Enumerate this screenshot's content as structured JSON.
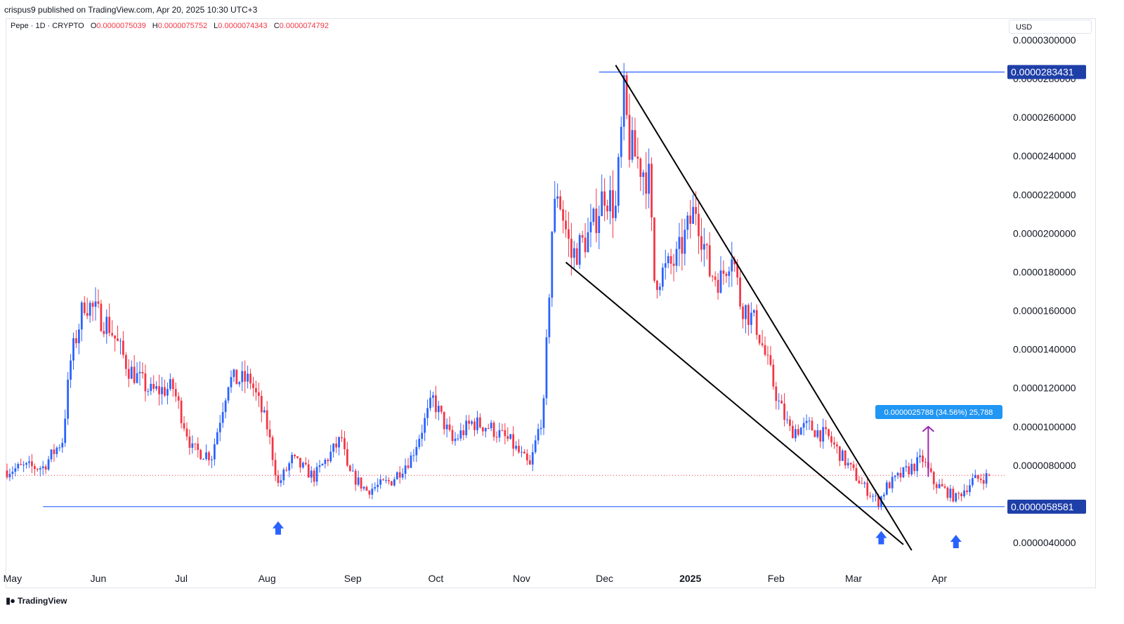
{
  "header": {
    "published_by": "crispus9 published on TradingView.com, Apr 20, 2025 10:30 UTC+3"
  },
  "legend": {
    "symbol": "Pepe · 1D · CRYPTO",
    "o_label": "O",
    "o_value": "0.0000075039",
    "h_label": "H",
    "h_value": "0.0000075752",
    "l_label": "L",
    "l_value": "0.0000074343",
    "c_label": "C",
    "c_value": "0.0000074792"
  },
  "currency": "USD",
  "footer": {
    "logo_text": "TradingView"
  },
  "colors": {
    "up": "#2962ff",
    "down": "#f23645",
    "hline": "#2962ff",
    "badge_bg": "#1e3fa8",
    "measure_bg": "#2196f3",
    "measure_arrow": "#9c27b0",
    "trendline": "#000000"
  },
  "chart_data": {
    "type": "candlestick",
    "x_labels": [
      "May",
      "Jun",
      "Jul",
      "Aug",
      "Sep",
      "Oct",
      "Nov",
      "Dec",
      "2025",
      "Feb",
      "Mar",
      "Apr"
    ],
    "x_range": [
      "2024-04-28",
      "2025-04-20"
    ],
    "y_range": [
      3.3e-06,
      3.1e-06
    ],
    "y_ticks": [
      "0.0000300000",
      "0.0000280000",
      "0.0000260000",
      "0.0000240000",
      "0.0000220000",
      "0.0000200000",
      "0.0000180000",
      "0.0000160000",
      "0.0000140000",
      "0.0000120000",
      "0.0000100000",
      "0.0000080000",
      "0.0000060000",
      "0.0000040000"
    ],
    "y_tick_values": [
      3e-05,
      2.8e-05,
      2.6e-05,
      2.4e-05,
      2.2e-05,
      2e-05,
      1.8e-05,
      1.6e-05,
      1.4e-05,
      1.2e-05,
      1e-05,
      8e-06,
      6e-06,
      4e-06
    ],
    "price_levels": [
      {
        "label": "0.0000283431",
        "value": 2.83431e-05,
        "start": "2024-11-29"
      },
      {
        "label": "0.0000058581",
        "value": 5.8581e-06,
        "start": "2024-05-12"
      }
    ],
    "current_price": 7.4792e-06,
    "trendlines": [
      {
        "from": [
          "2024-12-05",
          2.87e-05
        ],
        "to": [
          "2025-03-22",
          3.6e-06
        ]
      },
      {
        "from": [
          "2024-11-17",
          1.85e-05
        ],
        "to": [
          "2025-03-19",
          3.9e-06
        ]
      }
    ],
    "measure": {
      "label": "0.0000025788 (34.56%) 25,788",
      "date": "2025-03-28",
      "from": 7.4e-06,
      "to": 1e-05
    },
    "arrows": [
      {
        "date": "2024-08-05",
        "value": 4.7e-06
      },
      {
        "date": "2025-03-11",
        "value": 4.2e-06
      },
      {
        "date": "2025-04-07",
        "value": 4e-06
      }
    ],
    "anchors": [
      [
        "2024-04-28",
        7.7e-06
      ],
      [
        "2024-05-05",
        7.9e-06
      ],
      [
        "2024-05-12",
        7.9e-06
      ],
      [
        "2024-05-19",
        9.3e-06
      ],
      [
        "2024-05-22",
        1.34e-05
      ],
      [
        "2024-05-27",
        1.65e-05
      ],
      [
        "2024-06-05",
        1.52e-05
      ],
      [
        "2024-06-12",
        1.3e-05
      ],
      [
        "2024-06-20",
        1.18e-05
      ],
      [
        "2024-06-28",
        1.2e-05
      ],
      [
        "2024-07-05",
        8.8e-06
      ],
      [
        "2024-07-12",
        8.5e-06
      ],
      [
        "2024-07-18",
        1.24e-05
      ],
      [
        "2024-07-26",
        1.24e-05
      ],
      [
        "2024-08-01",
        1e-05
      ],
      [
        "2024-08-05",
        7e-06
      ],
      [
        "2024-08-10",
        8.3e-06
      ],
      [
        "2024-08-18",
        7.4e-06
      ],
      [
        "2024-08-28",
        9.4e-06
      ],
      [
        "2024-08-30",
        7.7e-06
      ],
      [
        "2024-09-06",
        6.7e-06
      ],
      [
        "2024-09-15",
        7.2e-06
      ],
      [
        "2024-09-22",
        8.4e-06
      ],
      [
        "2024-09-30",
        1.14e-05
      ],
      [
        "2024-10-07",
        9.2e-06
      ],
      [
        "2024-10-14",
        1.02e-05
      ],
      [
        "2024-10-20",
        1e-05
      ],
      [
        "2024-10-28",
        9.2e-06
      ],
      [
        "2024-11-04",
        7.9e-06
      ],
      [
        "2024-11-09",
        1.1e-05
      ],
      [
        "2024-11-12",
        2.02e-05
      ],
      [
        "2024-11-14",
        2.23e-05
      ],
      [
        "2024-11-19",
        1.88e-05
      ],
      [
        "2024-11-26",
        2e-05
      ],
      [
        "2024-12-01",
        2.22e-05
      ],
      [
        "2024-12-05",
        2.12e-05
      ],
      [
        "2024-12-08",
        2.7e-05
      ],
      [
        "2024-12-10",
        2.45e-05
      ],
      [
        "2024-12-17",
        2.28e-05
      ],
      [
        "2024-12-19",
        1.76e-05
      ],
      [
        "2024-12-27",
        1.86e-05
      ],
      [
        "2025-01-03",
        2.14e-05
      ],
      [
        "2025-01-08",
        1.8e-05
      ],
      [
        "2025-01-12",
        1.76e-05
      ],
      [
        "2025-01-16",
        1.92e-05
      ],
      [
        "2025-01-19",
        1.65e-05
      ],
      [
        "2025-01-25",
        1.52e-05
      ],
      [
        "2025-02-02",
        1.12e-05
      ],
      [
        "2025-02-06",
        9.8e-06
      ],
      [
        "2025-02-13",
        1e-05
      ],
      [
        "2025-02-20",
        9.4e-06
      ],
      [
        "2025-02-28",
        7.8e-06
      ],
      [
        "2025-03-04",
        7e-06
      ],
      [
        "2025-03-10",
        6.1e-06
      ],
      [
        "2025-03-13",
        6.9e-06
      ],
      [
        "2025-03-20",
        7.7e-06
      ],
      [
        "2025-03-26",
        8.3e-06
      ],
      [
        "2025-03-30",
        7.1e-06
      ],
      [
        "2025-04-07",
        6.3e-06
      ],
      [
        "2025-04-13",
        7.2e-06
      ],
      [
        "2025-04-20",
        7.5e-06
      ]
    ]
  }
}
